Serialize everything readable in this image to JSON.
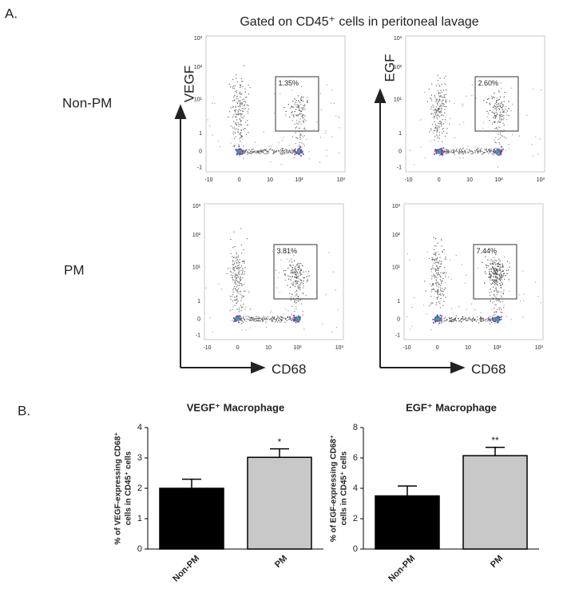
{
  "panel_a": {
    "label": "A.",
    "title": "Gated on CD45⁺ cells in peritoneal lavage",
    "row_labels": [
      "Non-PM",
      "PM"
    ],
    "x_axis_label": "CD68",
    "y_axis_labels": [
      "VEGF",
      "EGF"
    ],
    "x_ticks": [
      "-10",
      "0",
      "10",
      "10²",
      "10³"
    ],
    "y_ticks": [
      "10³",
      "10²",
      "10¹",
      "1",
      "0",
      "-1"
    ],
    "gates": [
      [
        "1.35%",
        "2.60%"
      ],
      [
        "3.81%",
        "7.44%"
      ]
    ]
  },
  "panel_b": {
    "label": "B."
  },
  "chart_data": [
    {
      "type": "bar",
      "title": "VEGF⁺ Macrophage",
      "y_label": [
        "% of VEGF-expressing CD68⁺",
        "cells in CD45⁺ cells"
      ],
      "categories": [
        "Non-PM",
        "PM"
      ],
      "values": [
        2.0,
        3.02
      ],
      "errors": [
        0.3,
        0.28
      ],
      "colors": [
        "#000000",
        "#c8c8c8"
      ],
      "significance": [
        null,
        "*"
      ],
      "ylim": [
        0,
        4
      ],
      "yticks": [
        0,
        1,
        2,
        3,
        4
      ]
    },
    {
      "type": "bar",
      "title": "EGF⁺ Macrophage",
      "y_label": [
        "% of EGF-expressing CD68⁺",
        "cells in CD45⁺ cells"
      ],
      "categories": [
        "Non-PM",
        "PM"
      ],
      "values": [
        3.5,
        6.15
      ],
      "errors": [
        0.65,
        0.55
      ],
      "colors": [
        "#000000",
        "#c8c8c8"
      ],
      "significance": [
        null,
        "**"
      ],
      "ylim": [
        0,
        8
      ],
      "yticks": [
        0,
        2,
        4,
        6,
        8
      ]
    }
  ]
}
